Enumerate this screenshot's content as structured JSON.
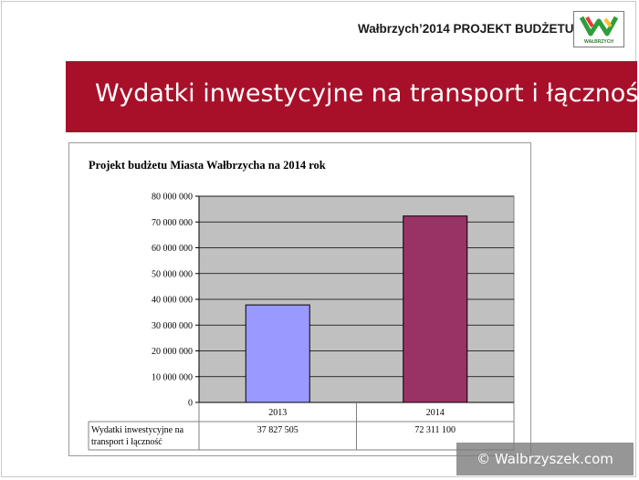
{
  "header": {
    "title": "Wałbrzych’2014 PROJEKT BUDŻETU",
    "logo_caption": "WAŁBRZYCH"
  },
  "banner": {
    "title": "Wydatki inwestycyjne na transport i łączność"
  },
  "chart_data": {
    "type": "bar",
    "title": "Projekt budżetu Miasta Wałbrzycha na 2014 rok",
    "categories": [
      "2013",
      "2014"
    ],
    "series": [
      {
        "name": "Wydatki inwestycyjne na transport i łączność",
        "values": [
          37827505,
          72311100
        ],
        "color_list": [
          "#9999ff",
          "#993366"
        ]
      }
    ],
    "table": {
      "row_label": "Wydatki inwestycyjne na transport i łączność",
      "row_label_lines": [
        "Wydatki inwestycyjne na",
        "transport i łączność"
      ],
      "values": [
        "37 827 505",
        "72 311 100"
      ]
    },
    "ylim": [
      0,
      80000000
    ],
    "y_ticks": [
      0,
      10000000,
      20000000,
      30000000,
      40000000,
      50000000,
      60000000,
      70000000,
      80000000
    ],
    "y_tick_labels": [
      "0",
      "10 000 000",
      "20 000 000",
      "30 000 000",
      "40 000 000",
      "50 000 000",
      "60 000 000",
      "70 000 000",
      "80 000 000"
    ],
    "grid": true,
    "plot_background": "#c0c0c0",
    "xlabel": "",
    "ylabel": ""
  },
  "watermark": {
    "text": "© Walbrzyszek.com"
  }
}
